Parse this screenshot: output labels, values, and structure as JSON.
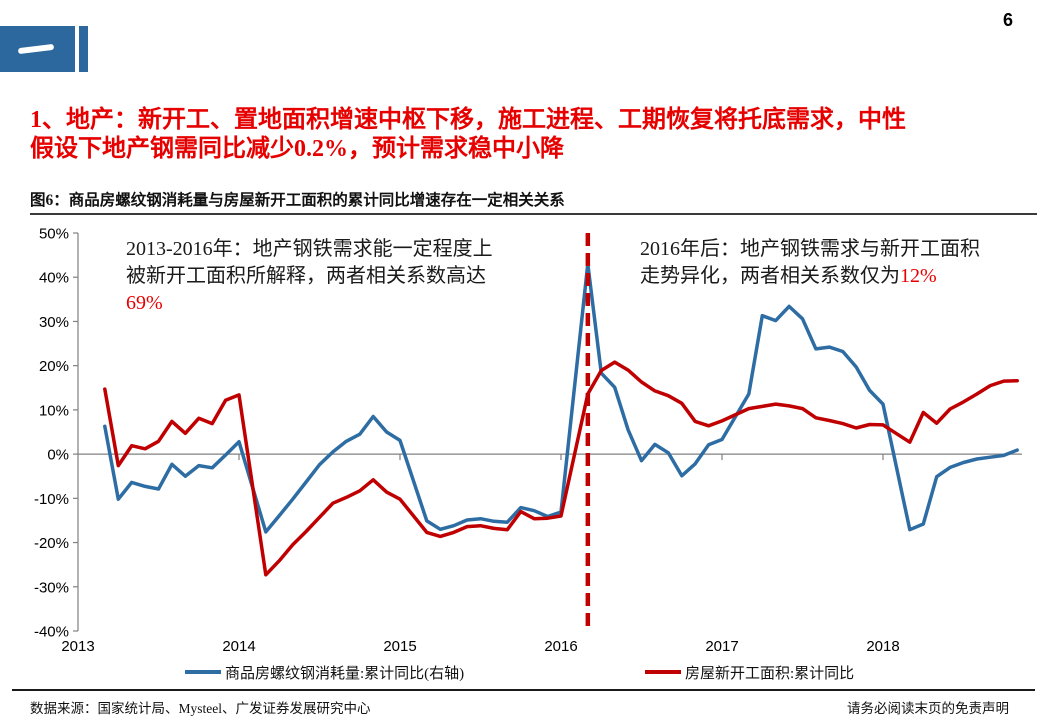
{
  "page": {
    "number": "6"
  },
  "logo": {
    "glyph_name": "chapter-one-stroke"
  },
  "heading": {
    "line1": "1、地产：新开工、置地面积增速中枢下移，施工进程、工期恢复将托底需求，中性",
    "line2": "假设下地产钢需同比减少0.2%，预计需求稳中小降",
    "color": "#e60000"
  },
  "figure": {
    "title": "图6：商品房螺纹钢消耗量与房屋新开工面积的累计同比增速存在一定相关关系"
  },
  "annotations": {
    "left": {
      "line1": "2013-2016年：地产钢铁需求能一定程度上",
      "line2": "被新开工面积所解释，两者相关系数高达",
      "highlight": "69%"
    },
    "right": {
      "line1": "2016年后：地产钢铁需求与新开工面积",
      "line2_prefix": "走势异化，两者相关系数仅为",
      "highlight": "12%"
    }
  },
  "footer": {
    "source": "数据来源：国家统计局、Mysteel、广发证券发展研究中心",
    "disclaimer": "请务必阅读末页的免责声明"
  },
  "chart_data": {
    "type": "line",
    "title": "图6：商品房螺纹钢消耗量与房屋新开工面积的累计同比增速存在一定相关关系",
    "xlabel": "",
    "ylabel": "",
    "ylim": [
      -40,
      50
    ],
    "ytick_step": 10,
    "ytick_format": "percent",
    "grid": "zero-line-only",
    "legend_position": "bottom",
    "axis_color": "#808080",
    "x_years": [
      2013,
      2014,
      2015,
      2016,
      2017,
      2018
    ],
    "months": [
      "2013-02",
      "2013-03",
      "2013-04",
      "2013-05",
      "2013-06",
      "2013-07",
      "2013-08",
      "2013-09",
      "2013-10",
      "2013-11",
      "2013-12",
      "2014-02",
      "2014-03",
      "2014-04",
      "2014-05",
      "2014-06",
      "2014-07",
      "2014-08",
      "2014-09",
      "2014-10",
      "2014-11",
      "2014-12",
      "2015-02",
      "2015-03",
      "2015-04",
      "2015-05",
      "2015-06",
      "2015-07",
      "2015-08",
      "2015-09",
      "2015-10",
      "2015-11",
      "2015-12",
      "2016-02",
      "2016-03",
      "2016-04",
      "2016-05",
      "2016-06",
      "2016-07",
      "2016-08",
      "2016-09",
      "2016-10",
      "2016-11",
      "2016-12",
      "2017-02",
      "2017-03",
      "2017-04",
      "2017-05",
      "2017-06",
      "2017-07",
      "2017-08",
      "2017-09",
      "2017-10",
      "2017-11",
      "2017-12",
      "2018-02",
      "2018-03",
      "2018-04",
      "2018-05",
      "2018-06",
      "2018-07",
      "2018-08",
      "2018-09",
      "2018-10"
    ],
    "series": [
      {
        "name": "商品房螺纹钢消耗量:累计同比(右轴)",
        "color": "#2e6da4",
        "values": [
          6.3,
          -10.2,
          -6.4,
          -7.3,
          -7.9,
          -2.3,
          -5.0,
          -2.6,
          -3.1,
          -0.2,
          2.8,
          -17.6,
          -13.9,
          -10.2,
          -6.3,
          -2.4,
          0.5,
          2.9,
          4.5,
          8.5,
          5.0,
          3.1,
          -15.1,
          -17.0,
          -16.2,
          -14.9,
          -14.6,
          -15.2,
          -15.4,
          -12.1,
          -12.8,
          -14.1,
          -13.1,
          43.0,
          18.3,
          15.1,
          5.5,
          -1.5,
          2.2,
          0.3,
          -4.9,
          -2.2,
          2.1,
          3.3,
          13.6,
          31.3,
          30.2,
          33.4,
          30.6,
          23.8,
          24.2,
          23.2,
          19.7,
          14.4,
          11.3,
          -17.1,
          -15.8,
          -5.1,
          -3.0,
          -1.9,
          -1.1,
          -0.7,
          -0.3,
          0.9
        ]
      },
      {
        "name": "房屋新开工面积:累计同比",
        "color": "#c00000",
        "values": [
          14.7,
          -2.6,
          1.9,
          1.2,
          2.9,
          7.4,
          4.7,
          8.1,
          6.9,
          12.2,
          13.4,
          -27.3,
          -24.1,
          -20.5,
          -17.5,
          -14.3,
          -11.1,
          -9.8,
          -8.3,
          -5.8,
          -8.6,
          -10.2,
          -17.7,
          -18.6,
          -17.7,
          -16.4,
          -16.2,
          -16.8,
          -17.1,
          -13.0,
          -14.6,
          -14.5,
          -14.0,
          13.6,
          18.9,
          20.8,
          19.0,
          16.3,
          14.3,
          13.2,
          11.5,
          7.4,
          6.4,
          7.5,
          10.3,
          10.8,
          11.3,
          10.9,
          10.3,
          8.2,
          7.6,
          6.9,
          5.9,
          6.7,
          6.6,
          2.7,
          9.4,
          7.0,
          10.2,
          11.8,
          13.6,
          15.5,
          16.5,
          16.6
        ]
      }
    ],
    "vline": {
      "month": "2016-02",
      "color": "#c00000",
      "style": "dashed"
    }
  }
}
